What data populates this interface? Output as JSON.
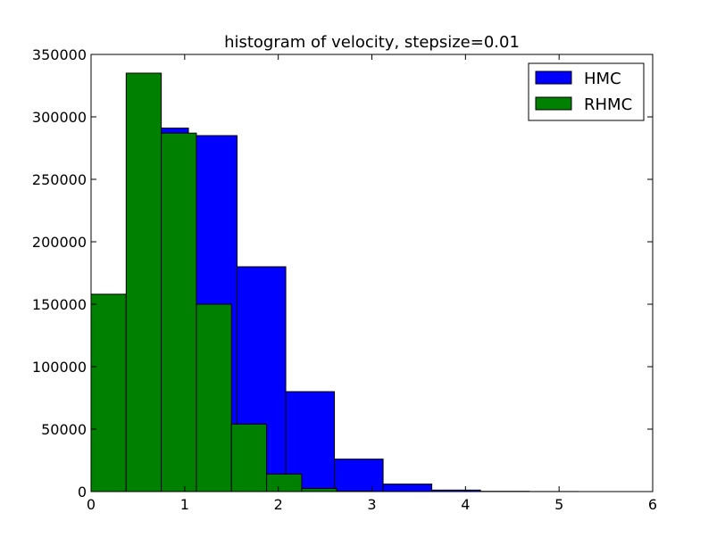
{
  "chart_data": {
    "type": "bar",
    "title": "histogram of velocity, stepsize=0.01",
    "xlabel": "",
    "ylabel": "",
    "xlim": [
      0,
      6
    ],
    "ylim": [
      0,
      350000
    ],
    "xticks": [
      "0",
      "1",
      "2",
      "3",
      "4",
      "5",
      "6"
    ],
    "yticks": [
      "0",
      "50000",
      "100000",
      "150000",
      "200000",
      "250000",
      "300000",
      "350000"
    ],
    "grid": false,
    "legend_position": "top-right",
    "series": [
      {
        "name": "HMC",
        "color": "#0000ff",
        "bins": [
          {
            "x0": 0.0,
            "x1": 0.52,
            "value": 92000
          },
          {
            "x0": 0.52,
            "x1": 1.04,
            "value": 291000
          },
          {
            "x0": 1.04,
            "x1": 1.56,
            "value": 285000
          },
          {
            "x0": 1.56,
            "x1": 2.08,
            "value": 180000
          },
          {
            "x0": 2.08,
            "x1": 2.6,
            "value": 80000
          },
          {
            "x0": 2.6,
            "x1": 3.12,
            "value": 26000
          },
          {
            "x0": 3.12,
            "x1": 3.64,
            "value": 6000
          },
          {
            "x0": 3.64,
            "x1": 4.16,
            "value": 1200
          },
          {
            "x0": 4.16,
            "x1": 4.68,
            "value": 200
          },
          {
            "x0": 4.68,
            "x1": 5.2,
            "value": 50
          }
        ]
      },
      {
        "name": "RHMC",
        "color": "#008000",
        "bins": [
          {
            "x0": 0.0,
            "x1": 0.375,
            "value": 158000
          },
          {
            "x0": 0.375,
            "x1": 0.75,
            "value": 335000
          },
          {
            "x0": 0.75,
            "x1": 1.125,
            "value": 287000
          },
          {
            "x0": 1.125,
            "x1": 1.5,
            "value": 150000
          },
          {
            "x0": 1.5,
            "x1": 1.875,
            "value": 54000
          },
          {
            "x0": 1.875,
            "x1": 2.25,
            "value": 14000
          },
          {
            "x0": 2.25,
            "x1": 2.625,
            "value": 2500
          },
          {
            "x0": 2.625,
            "x1": 3.0,
            "value": 300
          },
          {
            "x0": 3.0,
            "x1": 3.375,
            "value": 50
          },
          {
            "x0": 3.375,
            "x1": 3.75,
            "value": 10
          }
        ]
      }
    ]
  }
}
